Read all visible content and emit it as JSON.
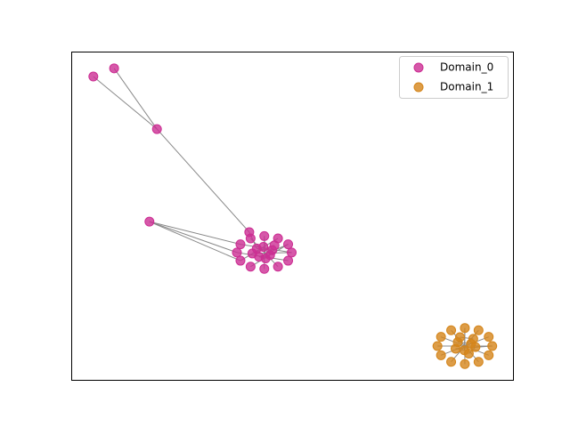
{
  "chart_data": {
    "type": "network",
    "xlim": [
      0,
      1
    ],
    "ylim": [
      0,
      1
    ],
    "legend": "upper right",
    "series": [
      {
        "name": "Domain_0",
        "color": "#cc2e93",
        "x": [
          0.05,
          0.097,
          0.194,
          0.177,
          0.403,
          0.499,
          0.491,
          0.468,
          0.437,
          0.406,
          0.383,
          0.375,
          0.383,
          0.406,
          0.437,
          0.468,
          0.491,
          0.42,
          0.455,
          0.44,
          0.425,
          0.46,
          0.41,
          0.45,
          0.435
        ],
        "y": [
          0.924,
          0.949,
          0.764,
          0.482,
          0.45,
          0.388,
          0.413,
          0.431,
          0.438,
          0.431,
          0.413,
          0.388,
          0.363,
          0.345,
          0.338,
          0.345,
          0.363,
          0.4,
          0.395,
          0.37,
          0.375,
          0.41,
          0.385,
          0.38,
          0.405
        ],
        "edges": [
          [
            0,
            2
          ],
          [
            1,
            2
          ],
          [
            2,
            4
          ],
          [
            3,
            11
          ],
          [
            3,
            10
          ],
          [
            3,
            12
          ],
          [
            4,
            17
          ],
          [
            5,
            10
          ],
          [
            6,
            13
          ],
          [
            7,
            12
          ],
          [
            8,
            14
          ],
          [
            9,
            15
          ],
          [
            11,
            16
          ],
          [
            17,
            18
          ],
          [
            19,
            20
          ],
          [
            21,
            22
          ],
          [
            23,
            24
          ],
          [
            5,
            22
          ],
          [
            8,
            19
          ],
          [
            6,
            20
          ]
        ]
      },
      {
        "name": "Domain_1",
        "color": "#d4851a",
        "x": [
          0.953,
          0.945,
          0.922,
          0.891,
          0.86,
          0.837,
          0.829,
          0.837,
          0.86,
          0.891,
          0.922,
          0.945,
          0.875,
          0.905,
          0.89,
          0.87,
          0.91,
          0.88,
          0.9,
          0.915
        ],
        "y": [
          0.103,
          0.131,
          0.151,
          0.158,
          0.151,
          0.131,
          0.103,
          0.075,
          0.055,
          0.048,
          0.055,
          0.075,
          0.115,
          0.11,
          0.09,
          0.095,
          0.125,
          0.13,
          0.08,
          0.1
        ],
        "edges": [
          [
            0,
            6
          ],
          [
            1,
            7
          ],
          [
            2,
            8
          ],
          [
            3,
            9
          ],
          [
            4,
            10
          ],
          [
            5,
            11
          ],
          [
            12,
            13
          ],
          [
            14,
            15
          ],
          [
            16,
            17
          ],
          [
            18,
            19
          ],
          [
            0,
            15
          ],
          [
            3,
            14
          ]
        ]
      }
    ]
  }
}
